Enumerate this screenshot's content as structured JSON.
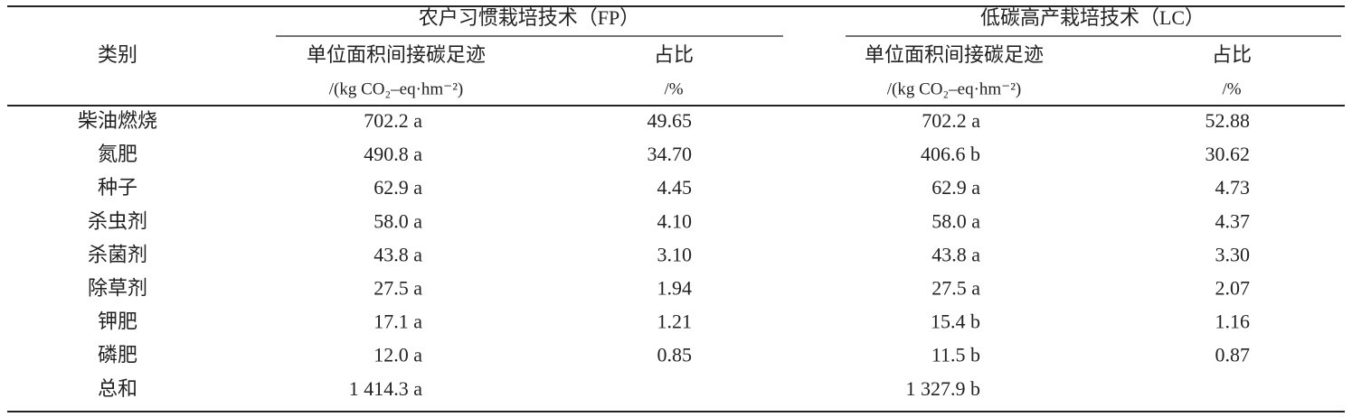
{
  "table": {
    "header": {
      "category": "类别",
      "groups": [
        "农户习惯栽培技术（FP）",
        "低碳高产栽培技术（LC）"
      ],
      "columns": [
        "单位面积间接碳足迹",
        "占比",
        "单位面积间接碳足迹",
        "占比"
      ],
      "units": [
        "/(kg CO₂–eq·hm⁻²)",
        "/%",
        "/(kg CO₂–eq·hm⁻²)",
        "/%"
      ]
    },
    "rows": [
      {
        "category": "柴油燃烧",
        "fp": "702.2 a",
        "fp_share": "49.65",
        "lc": "702.2 a",
        "lc_share": "52.88"
      },
      {
        "category": "氮肥",
        "fp": "490.8 a",
        "fp_share": "34.70",
        "lc": "406.6 b",
        "lc_share": "30.62"
      },
      {
        "category": "种子",
        "fp": "62.9 a",
        "fp_share": "4.45",
        "lc": "62.9 a",
        "lc_share": "4.73"
      },
      {
        "category": "杀虫剂",
        "fp": "58.0 a",
        "fp_share": "4.10",
        "lc": "58.0 a",
        "lc_share": "4.37"
      },
      {
        "category": "杀菌剂",
        "fp": "43.8 a",
        "fp_share": "3.10",
        "lc": "43.8 a",
        "lc_share": "3.30"
      },
      {
        "category": "除草剂",
        "fp": "27.5 a",
        "fp_share": "1.94",
        "lc": "27.5 a",
        "lc_share": "2.07"
      },
      {
        "category": "钾肥",
        "fp": "17.1 a",
        "fp_share": "1.21",
        "lc": "15.4 b",
        "lc_share": "1.16"
      },
      {
        "category": "磷肥",
        "fp": "12.0 a",
        "fp_share": "0.85",
        "lc": "11.5 b",
        "lc_share": "0.87"
      },
      {
        "category": "总和",
        "fp": "1 414.3 a",
        "lc": "1 327.9 b"
      }
    ]
  }
}
